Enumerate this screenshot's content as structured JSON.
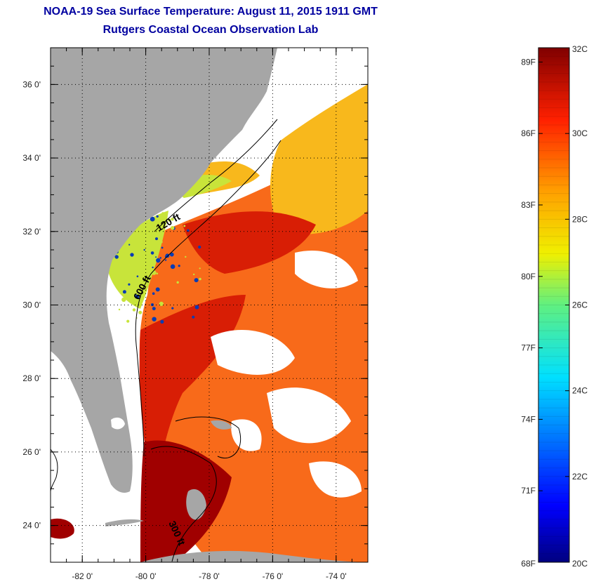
{
  "title_line1": "NOAA-19 Sea Surface Temperature:  August 11, 2015 1911 GMT",
  "title_line2": "Rutgers Coastal Ocean Observation Lab",
  "map": {
    "lon_range": [
      -83,
      -73
    ],
    "lat_range": [
      23,
      37
    ],
    "lon_ticks": [
      {
        "value": -82,
        "label": "-82 0'"
      },
      {
        "value": -80,
        "label": "-80 0'"
      },
      {
        "value": -78,
        "label": "-78 0'"
      },
      {
        "value": -76,
        "label": "-76 0'"
      },
      {
        "value": -74,
        "label": "-74 0'"
      }
    ],
    "lat_ticks": [
      {
        "value": 36,
        "label": "36 0'"
      },
      {
        "value": 34,
        "label": "34 0'"
      },
      {
        "value": 32,
        "label": "32 0'"
      },
      {
        "value": 30,
        "label": "30 0'"
      },
      {
        "value": 28,
        "label": "28 0'"
      },
      {
        "value": 26,
        "label": "26 0'"
      },
      {
        "value": 24,
        "label": "24 0'"
      }
    ],
    "contour_labels": [
      "120 ft",
      "600 ft",
      "300 ft"
    ],
    "grid": true,
    "colors": {
      "land": "#a6a6a6",
      "cloud": "#ffffff",
      "warm": "#d81e05",
      "hot": "#a00000",
      "medium": "#f86a1a",
      "cool": "#f8b81c",
      "cold": "#c8e43a",
      "coldest": "#0a3cb4"
    }
  },
  "colorbar": {
    "celsius_labels": [
      "32C",
      "30C",
      "28C",
      "26C",
      "24C",
      "22C",
      "20C"
    ],
    "fahrenheit_labels": [
      "89F",
      "86F",
      "83F",
      "80F",
      "77F",
      "74F",
      "71F",
      "68F"
    ],
    "celsius_values": [
      32,
      30,
      28,
      26,
      24,
      22,
      20
    ],
    "fahrenheit_values": [
      89,
      86,
      83,
      80,
      77,
      74,
      71,
      68
    ],
    "range_c": [
      20,
      32
    ],
    "colormap": "jet"
  }
}
